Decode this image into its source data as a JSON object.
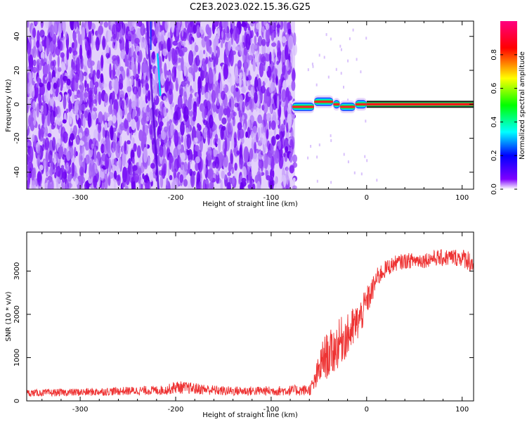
{
  "figure": {
    "title": "C2E3.2023.022.15.36.G25"
  },
  "chart_data": [
    {
      "type": "heatmap",
      "xlabel": "Height of straight line (km)",
      "ylabel": "Frequency (Hz)",
      "xlim": [
        -356,
        112
      ],
      "ylim": [
        -50,
        49
      ],
      "xticks": [
        -300,
        -200,
        -100,
        0,
        100
      ],
      "yticks": [
        -40,
        -20,
        0,
        20,
        40
      ],
      "noise_region_x": [
        -356,
        -75
      ],
      "signal_line": {
        "x": [
          0,
          112
        ],
        "frequency": 0,
        "amplitude": 1.0
      },
      "transition_blobs": [
        {
          "x": [
            -78,
            -55
          ],
          "frequency": -1.5
        },
        {
          "x": [
            -55,
            -35
          ],
          "frequency": 1.5
        },
        {
          "x": [
            -35,
            -28
          ],
          "frequency": 0
        },
        {
          "x": [
            -28,
            -12
          ],
          "frequency": -1.5
        },
        {
          "x": [
            -12,
            0
          ],
          "frequency": 0
        }
      ],
      "colorbar": {
        "label": "Normalized spectral amplitude",
        "ticks": [
          0.0,
          0.2,
          0.4,
          0.6,
          0.8
        ],
        "ticklabels": [
          "0.0",
          "0.2",
          "0.4",
          "0.6",
          "0.8"
        ],
        "range": [
          0,
          1
        ],
        "colormap": [
          "#ffffff",
          "#7f00ff",
          "#0000ff",
          "#00ffff",
          "#00ff00",
          "#ffff00",
          "#ff0000",
          "#ff0080"
        ]
      },
      "grid": false
    },
    {
      "type": "line",
      "xlabel": "Height of straight line (km)",
      "ylabel": "SNR (10 * v/v)",
      "xlim": [
        -356,
        112
      ],
      "ylim": [
        0,
        3900
      ],
      "xticks": [
        -300,
        -200,
        -100,
        0,
        100
      ],
      "yticks": [
        0,
        1000,
        2000,
        3000
      ],
      "series": [
        {
          "color": "#ee3333",
          "x": [
            -356,
            -300,
            -250,
            -210,
            -200,
            -150,
            -100,
            -60,
            -55,
            -50,
            -45,
            -40,
            -35,
            -30,
            -25,
            -20,
            -15,
            -10,
            -5,
            0,
            5,
            10,
            15,
            20,
            30,
            40,
            50,
            60,
            70,
            80,
            90,
            100,
            105,
            112
          ],
          "y": [
            180,
            200,
            230,
            250,
            320,
            230,
            230,
            250,
            400,
            700,
            1000,
            1050,
            1150,
            1300,
            1450,
            1500,
            1650,
            1800,
            2000,
            2300,
            2500,
            2800,
            2950,
            3050,
            3180,
            3230,
            3250,
            3250,
            3300,
            3300,
            3320,
            3300,
            3280,
            3150
          ],
          "noise_amp": [
            80,
            90,
            100,
            110,
            150,
            110,
            110,
            130,
            220,
            400,
            500,
            550,
            550,
            550,
            550,
            500,
            500,
            450,
            400,
            350,
            300,
            250,
            220,
            200,
            180,
            180,
            180,
            180,
            180,
            200,
            200,
            200,
            250,
            250
          ]
        }
      ],
      "grid": false
    }
  ]
}
